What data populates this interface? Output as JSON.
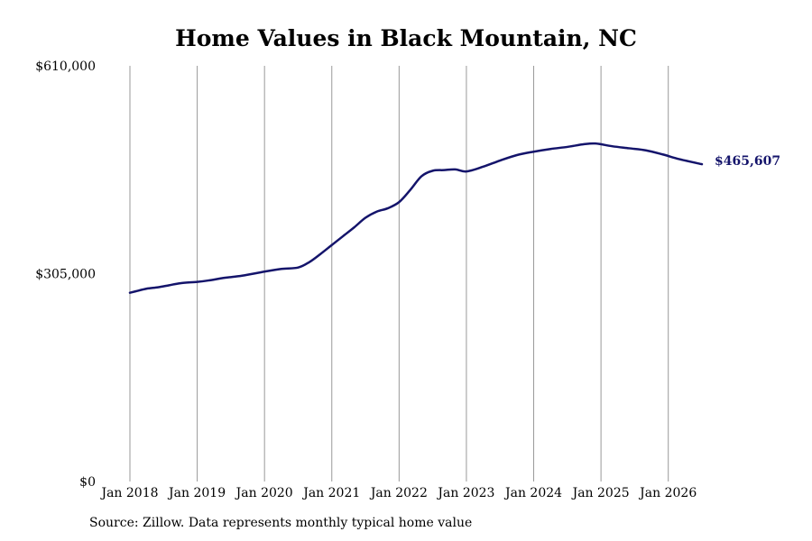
{
  "chart_data": {
    "type": "line",
    "title": "Home Values in Black Mountain, NC",
    "xlabel": "",
    "ylabel": "",
    "ylim": [
      0,
      610000
    ],
    "xlim": [
      "2018-01",
      "2026-07"
    ],
    "y_ticks": [
      {
        "value": 0,
        "label": "$0"
      },
      {
        "value": 305000,
        "label": "$305,000"
      },
      {
        "value": 610000,
        "label": "$610,000"
      }
    ],
    "x_ticks": [
      {
        "value": "2018-01",
        "label": "Jan 2018"
      },
      {
        "value": "2019-01",
        "label": "Jan 2019"
      },
      {
        "value": "2020-01",
        "label": "Jan 2020"
      },
      {
        "value": "2021-01",
        "label": "Jan 2021"
      },
      {
        "value": "2022-01",
        "label": "Jan 2022"
      },
      {
        "value": "2023-01",
        "label": "Jan 2023"
      },
      {
        "value": "2024-01",
        "label": "Jan 2024"
      },
      {
        "value": "2025-01",
        "label": "Jan 2025"
      },
      {
        "value": "2026-01",
        "label": "Jan 2026"
      }
    ],
    "vertical_grid": true,
    "line_color": "#14146b",
    "grid_color": "#999999",
    "series": [
      {
        "x": [
          "2018-01",
          "2018-02",
          "2018-04",
          "2018-06",
          "2018-08",
          "2018-10",
          "2019-01",
          "2019-03",
          "2019-06",
          "2019-09",
          "2020-01",
          "2020-04",
          "2020-07",
          "2020-09",
          "2020-11",
          "2021-01",
          "2021-03",
          "2021-05",
          "2021-07",
          "2021-09",
          "2021-11",
          "2022-01",
          "2022-03",
          "2022-05",
          "2022-07",
          "2022-09",
          "2022-11",
          "2023-01",
          "2023-04",
          "2023-07",
          "2023-10",
          "2024-01",
          "2024-04",
          "2024-07",
          "2024-10",
          "2024-12",
          "2025-03",
          "2025-06",
          "2025-09",
          "2025-12",
          "2026-03",
          "2026-07"
        ],
        "values": [
          277000,
          279000,
          283000,
          285000,
          288000,
          291000,
          293000,
          295000,
          299000,
          302000,
          308000,
          312000,
          314000,
          322000,
          334000,
          347000,
          360000,
          373000,
          387000,
          396000,
          401000,
          410000,
          428000,
          448000,
          456000,
          457000,
          458000,
          455000,
          462000,
          471000,
          479000,
          484000,
          488000,
          491000,
          495000,
          496000,
          492000,
          489000,
          486000,
          480000,
          473000,
          465607
        ]
      }
    ],
    "end_label": "$465,607"
  },
  "source": "Source: Zillow. Data represents monthly typical home value"
}
